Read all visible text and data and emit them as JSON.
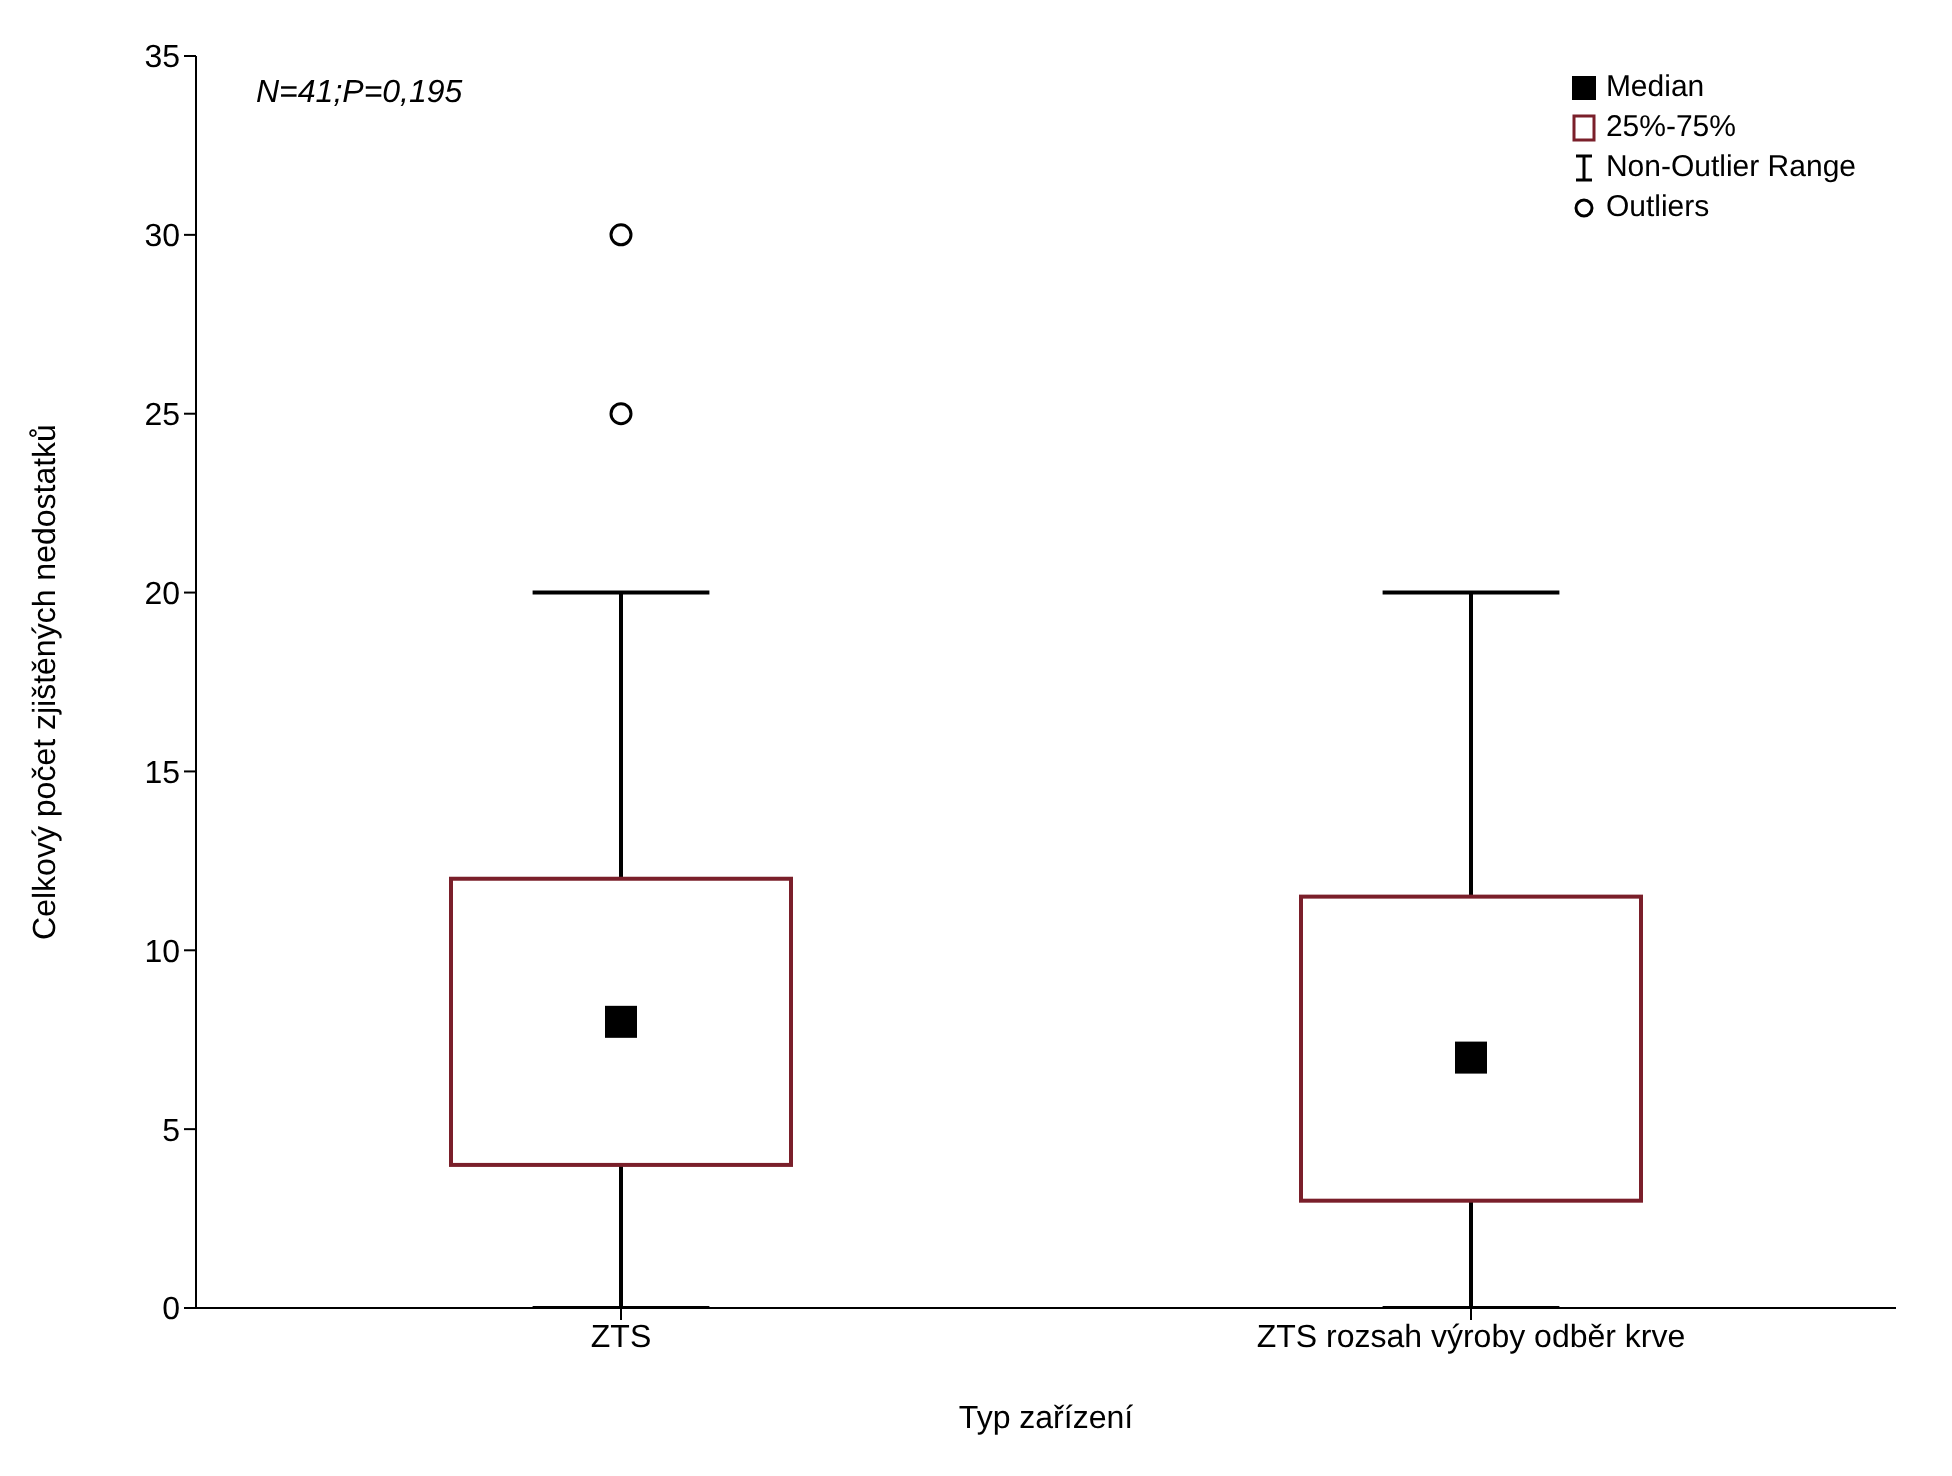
{
  "chart_data": {
    "type": "box",
    "categories": [
      "ZTS",
      "ZTS rozsah výroby odběr krve"
    ],
    "xlabel": "Typ zařízení",
    "ylabel": "Celkový počet zjištěných nedostatků",
    "ylim": [
      0,
      35
    ],
    "yticks": [
      0,
      5,
      10,
      15,
      20,
      25,
      30,
      35
    ],
    "color": "#7a1f2a",
    "boxes": [
      {
        "low": 0,
        "q1": 4,
        "median": 8,
        "q3": 12,
        "high": 20,
        "outliers": [
          25,
          30
        ]
      },
      {
        "low": 0,
        "q1": 3,
        "median": 7,
        "q3": 11.5,
        "high": 20
      }
    ],
    "annotations": [
      "N=41;P=0,195",
      "Median",
      "25%-75%",
      "Non-Outlier Range",
      "Outliers"
    ]
  }
}
